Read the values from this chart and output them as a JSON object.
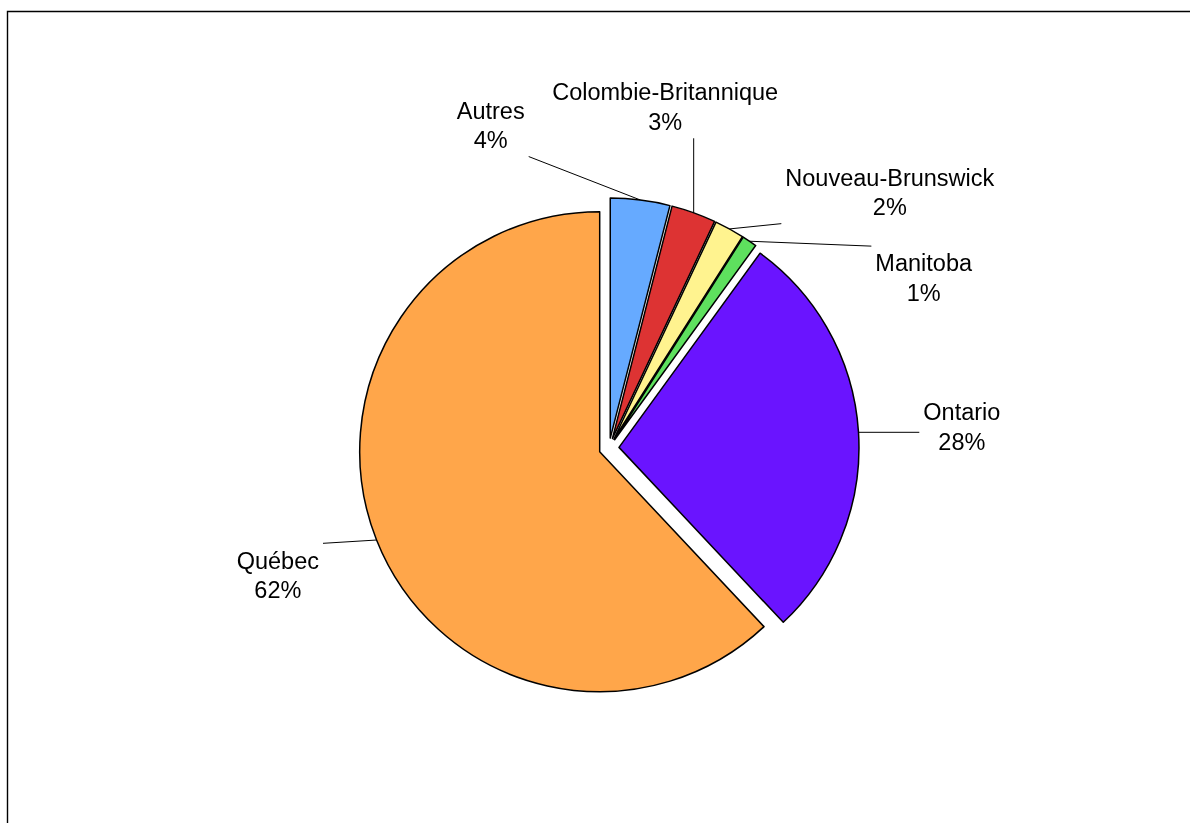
{
  "chart_data": {
    "type": "pie",
    "categories": [
      "Autres",
      "Colombie-Britannique",
      "Nouveau-Brunswick",
      "Manitoba",
      "Ontario",
      "Québec"
    ],
    "values": [
      4,
      3,
      2,
      1,
      28,
      62
    ],
    "value_labels": [
      "4%",
      "3%",
      "2%",
      "1%",
      "28%",
      "62%"
    ],
    "colors": [
      "#66aaff",
      "#dd3333",
      "#fff38f",
      "#5ee05e",
      "#6a14ff",
      "#ffa64a"
    ]
  }
}
